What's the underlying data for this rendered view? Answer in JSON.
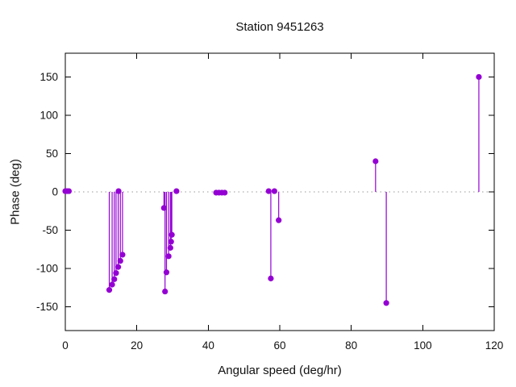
{
  "chart_data": {
    "type": "scatter",
    "style": "impulses+points (stem plot from zero line)",
    "title": "Station 9451263",
    "xlabel": "Angular speed (deg/hr)",
    "ylabel": "Phase (deg)",
    "xlim": [
      0,
      120
    ],
    "ylim": [
      -181,
      181
    ],
    "xticks": [
      0,
      20,
      40,
      60,
      80,
      100,
      120
    ],
    "yticks": [
      -150,
      -100,
      -50,
      0,
      50,
      100,
      150
    ],
    "grid": false,
    "zero_line": "dotted",
    "color": "#9400d3",
    "zero_line_color": "#999999",
    "axis_color": "#000000",
    "points": [
      {
        "x": 0.0,
        "phase": 1
      },
      {
        "x": 0.5,
        "phase": 1
      },
      {
        "x": 1.0,
        "phase": 1
      },
      {
        "x": 12.3,
        "phase": -128
      },
      {
        "x": 13.1,
        "phase": -121
      },
      {
        "x": 13.7,
        "phase": -114
      },
      {
        "x": 14.2,
        "phase": -106
      },
      {
        "x": 14.8,
        "phase": -98
      },
      {
        "x": 14.9,
        "phase": 1
      },
      {
        "x": 15.4,
        "phase": -90
      },
      {
        "x": 16.0,
        "phase": -82
      },
      {
        "x": 27.6,
        "phase": -21
      },
      {
        "x": 27.9,
        "phase": -130
      },
      {
        "x": 28.3,
        "phase": -105
      },
      {
        "x": 28.9,
        "phase": -84
      },
      {
        "x": 29.4,
        "phase": -73
      },
      {
        "x": 29.6,
        "phase": -65
      },
      {
        "x": 29.8,
        "phase": -56
      },
      {
        "x": 31.1,
        "phase": 1
      },
      {
        "x": 42.2,
        "phase": -1
      },
      {
        "x": 43.0,
        "phase": -1
      },
      {
        "x": 43.8,
        "phase": -1
      },
      {
        "x": 44.6,
        "phase": -1
      },
      {
        "x": 56.9,
        "phase": 1
      },
      {
        "x": 57.5,
        "phase": -113
      },
      {
        "x": 58.5,
        "phase": 1
      },
      {
        "x": 59.7,
        "phase": -37
      },
      {
        "x": 86.8,
        "phase": 40
      },
      {
        "x": 89.8,
        "phase": -145
      },
      {
        "x": 115.7,
        "phase": 150
      }
    ]
  }
}
